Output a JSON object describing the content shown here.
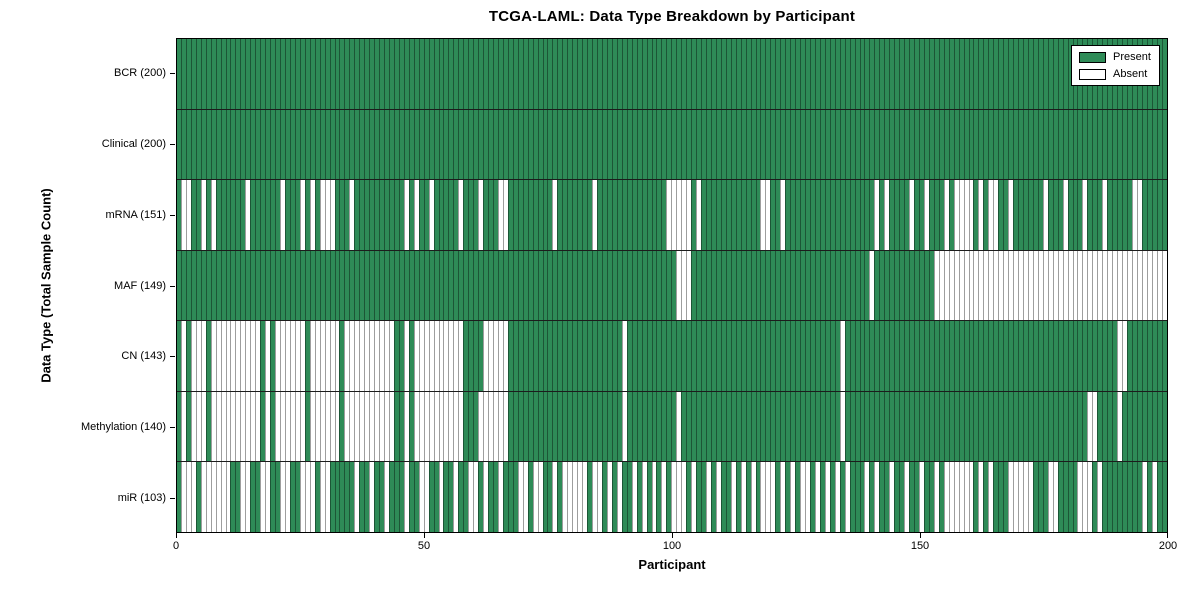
{
  "title": "TCGA-LAML: Data Type Breakdown by Participant",
  "colors": {
    "present": "#2e8b57",
    "absent": "#ffffff",
    "cell_edge": "rgba(0,0,0,0.38)",
    "row_separator": "#1c1c1c",
    "plot_border": "#000000"
  },
  "legend": {
    "present_label": "Present",
    "absent_label": "Absent"
  },
  "chart_data": {
    "type": "heatmap",
    "title": "TCGA-LAML: Data Type Breakdown by Participant",
    "xlabel": "Participant",
    "ylabel": "Data Type (Total Sample Count)",
    "x_range": [
      0,
      200
    ],
    "n_participants": 200,
    "x_ticks": [
      0,
      50,
      100,
      150,
      200
    ],
    "grid": false,
    "legend_position": "upper right",
    "value_encoding": {
      "present": 1,
      "absent": 0
    },
    "rows": [
      {
        "label": "BCR",
        "present_count": 200,
        "absent_ranges": []
      },
      {
        "label": "Clinical",
        "present_count": 200,
        "absent_ranges": []
      },
      {
        "label": "mRNA",
        "present_count": 151,
        "absent_ranges": [
          [
            1,
            2
          ],
          [
            5,
            5
          ],
          [
            7,
            7
          ],
          [
            14,
            14
          ],
          [
            21,
            21
          ],
          [
            25,
            25
          ],
          [
            27,
            27
          ],
          [
            29,
            31
          ],
          [
            35,
            35
          ],
          [
            46,
            46
          ],
          [
            48,
            48
          ],
          [
            51,
            51
          ],
          [
            57,
            57
          ],
          [
            61,
            61
          ],
          [
            65,
            66
          ],
          [
            76,
            76
          ],
          [
            84,
            84
          ],
          [
            99,
            103
          ],
          [
            105,
            105
          ],
          [
            118,
            119
          ],
          [
            122,
            122
          ],
          [
            141,
            141
          ],
          [
            143,
            143
          ],
          [
            148,
            148
          ],
          [
            151,
            151
          ],
          [
            155,
            155
          ],
          [
            157,
            160
          ],
          [
            162,
            162
          ],
          [
            164,
            165
          ],
          [
            168,
            168
          ],
          [
            175,
            175
          ],
          [
            179,
            179
          ],
          [
            183,
            183
          ],
          [
            187,
            187
          ],
          [
            193,
            194
          ]
        ]
      },
      {
        "label": "MAF",
        "present_count": 149,
        "absent_ranges": [
          [
            101,
            103
          ],
          [
            140,
            140
          ],
          [
            153,
            199
          ]
        ]
      },
      {
        "label": "CN",
        "present_count": 143,
        "absent_ranges": [
          [
            1,
            1
          ],
          [
            3,
            5
          ],
          [
            7,
            16
          ],
          [
            18,
            18
          ],
          [
            20,
            25
          ],
          [
            27,
            32
          ],
          [
            34,
            43
          ],
          [
            46,
            46
          ],
          [
            48,
            57
          ],
          [
            62,
            66
          ],
          [
            90,
            90
          ],
          [
            134,
            134
          ],
          [
            190,
            191
          ]
        ]
      },
      {
        "label": "Methylation",
        "present_count": 140,
        "absent_ranges": [
          [
            1,
            1
          ],
          [
            3,
            5
          ],
          [
            7,
            16
          ],
          [
            18,
            18
          ],
          [
            20,
            25
          ],
          [
            27,
            32
          ],
          [
            34,
            43
          ],
          [
            46,
            46
          ],
          [
            48,
            57
          ],
          [
            61,
            66
          ],
          [
            90,
            90
          ],
          [
            101,
            101
          ],
          [
            134,
            134
          ],
          [
            184,
            185
          ],
          [
            190,
            190
          ]
        ]
      },
      {
        "label": "miR",
        "present_count": 103,
        "absent_ranges": [
          [
            1,
            3
          ],
          [
            5,
            10
          ],
          [
            13,
            14
          ],
          [
            17,
            18
          ],
          [
            21,
            22
          ],
          [
            25,
            27
          ],
          [
            29,
            30
          ],
          [
            36,
            36
          ],
          [
            39,
            39
          ],
          [
            42,
            42
          ],
          [
            46,
            46
          ],
          [
            49,
            50
          ],
          [
            53,
            53
          ],
          [
            56,
            56
          ],
          [
            59,
            60
          ],
          [
            62,
            62
          ],
          [
            65,
            65
          ],
          [
            69,
            70
          ],
          [
            72,
            73
          ],
          [
            76,
            76
          ],
          [
            78,
            82
          ],
          [
            84,
            85
          ],
          [
            87,
            87
          ],
          [
            89,
            89
          ],
          [
            92,
            92
          ],
          [
            94,
            94
          ],
          [
            96,
            96
          ],
          [
            98,
            98
          ],
          [
            100,
            102
          ],
          [
            104,
            104
          ],
          [
            107,
            107
          ],
          [
            109,
            109
          ],
          [
            112,
            112
          ],
          [
            114,
            114
          ],
          [
            116,
            116
          ],
          [
            118,
            120
          ],
          [
            122,
            122
          ],
          [
            124,
            124
          ],
          [
            126,
            127
          ],
          [
            129,
            129
          ],
          [
            131,
            131
          ],
          [
            133,
            133
          ],
          [
            135,
            135
          ],
          [
            139,
            139
          ],
          [
            141,
            141
          ],
          [
            144,
            144
          ],
          [
            147,
            147
          ],
          [
            150,
            150
          ],
          [
            153,
            153
          ],
          [
            155,
            160
          ],
          [
            162,
            162
          ],
          [
            164,
            164
          ],
          [
            168,
            172
          ],
          [
            176,
            177
          ],
          [
            182,
            184
          ],
          [
            186,
            186
          ],
          [
            195,
            195
          ],
          [
            197,
            197
          ]
        ]
      }
    ]
  }
}
